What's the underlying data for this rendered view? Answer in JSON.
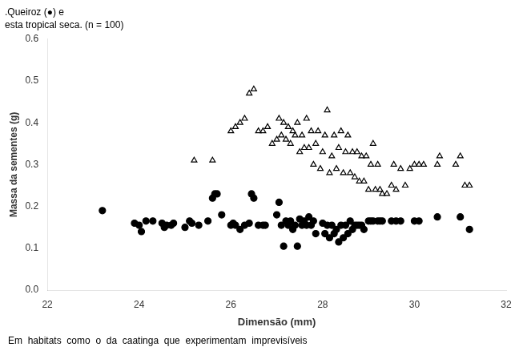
{
  "chart_data": {
    "type": "scatter",
    "title": ".Queiroz (●) e",
    "subtitle": "esta tropical seca. (n = 100)",
    "annotations": [
      "Em  habitats  como  o  da  caatinga  que  experimentam  imprevisíveis"
    ],
    "xlabel": "Dimensão (mm)",
    "ylabel": "Massa da sementes (g)",
    "xlim": [
      22,
      32
    ],
    "ylim": [
      0,
      0.6
    ],
    "xticks": [
      22,
      24,
      26,
      28,
      30,
      32
    ],
    "yticks": [
      {
        "value": 0,
        "label": "0.0"
      },
      0.1,
      0.2,
      0.3,
      0.4,
      0.5,
      0.6
    ],
    "grid": false,
    "series": [
      {
        "color": "#000000",
        "marker": "circle",
        "x": [
          23.2,
          23.9,
          24.0,
          24.05,
          24.15,
          24.3,
          24.5,
          24.55,
          24.6,
          24.7,
          24.75,
          25.0,
          25.1,
          25.15,
          25.3,
          25.5,
          25.6,
          25.65,
          25.7,
          25.8,
          26.0,
          26.05,
          26.1,
          26.2,
          26.3,
          26.4,
          26.45,
          26.5,
          26.6,
          26.7,
          26.75,
          27.0,
          27.05,
          27.1,
          27.15,
          27.2,
          27.25,
          27.3,
          27.35,
          27.4,
          27.45,
          27.5,
          27.55,
          27.6,
          27.65,
          27.7,
          27.75,
          27.8,
          27.85,
          28.0,
          28.05,
          28.1,
          28.15,
          28.2,
          28.25,
          28.3,
          28.35,
          28.4,
          28.45,
          28.5,
          28.55,
          28.6,
          28.65,
          28.7,
          28.75,
          28.8,
          28.85,
          28.9,
          29.0,
          29.05,
          29.1,
          29.2,
          29.25,
          29.3,
          29.5,
          29.6,
          29.7,
          30.0,
          30.1,
          30.5,
          31.0,
          31.2
        ],
        "values": [
          0.19,
          0.16,
          0.155,
          0.14,
          0.165,
          0.165,
          0.16,
          0.15,
          0.155,
          0.155,
          0.16,
          0.15,
          0.165,
          0.16,
          0.155,
          0.165,
          0.22,
          0.23,
          0.23,
          0.18,
          0.155,
          0.16,
          0.155,
          0.145,
          0.155,
          0.16,
          0.23,
          0.22,
          0.155,
          0.155,
          0.155,
          0.18,
          0.21,
          0.155,
          0.105,
          0.165,
          0.155,
          0.165,
          0.145,
          0.155,
          0.105,
          0.17,
          0.155,
          0.165,
          0.155,
          0.175,
          0.155,
          0.165,
          0.135,
          0.16,
          0.135,
          0.155,
          0.125,
          0.155,
          0.135,
          0.145,
          0.115,
          0.155,
          0.125,
          0.155,
          0.135,
          0.165,
          0.145,
          0.155,
          0.155,
          0.155,
          0.155,
          0.145,
          0.165,
          0.165,
          0.165,
          0.165,
          0.165,
          0.165,
          0.165,
          0.165,
          0.165,
          0.165,
          0.165,
          0.175,
          0.175,
          0.145
        ]
      },
      {
        "color": "#000000",
        "marker": "triangle-open",
        "x": [
          25.2,
          25.6,
          26.0,
          26.1,
          26.2,
          26.3,
          26.4,
          26.5,
          26.6,
          26.7,
          26.8,
          26.9,
          27.0,
          27.05,
          27.1,
          27.15,
          27.2,
          27.25,
          27.3,
          27.35,
          27.4,
          27.45,
          27.5,
          27.55,
          27.6,
          27.65,
          27.7,
          27.75,
          27.8,
          27.85,
          27.9,
          27.95,
          28.0,
          28.05,
          28.1,
          28.15,
          28.2,
          28.25,
          28.3,
          28.35,
          28.4,
          28.45,
          28.5,
          28.55,
          28.6,
          28.65,
          28.7,
          28.75,
          28.8,
          28.85,
          28.9,
          28.95,
          29.0,
          29.05,
          29.1,
          29.15,
          29.2,
          29.25,
          29.3,
          29.4,
          29.5,
          29.55,
          29.6,
          29.7,
          29.8,
          29.9,
          30.0,
          30.1,
          30.2,
          30.5,
          30.55,
          30.9,
          31.0,
          31.1,
          31.2
        ],
        "values": [
          0.31,
          0.31,
          0.38,
          0.39,
          0.4,
          0.41,
          0.47,
          0.48,
          0.38,
          0.38,
          0.39,
          0.35,
          0.36,
          0.41,
          0.37,
          0.4,
          0.36,
          0.39,
          0.35,
          0.38,
          0.37,
          0.4,
          0.33,
          0.37,
          0.34,
          0.41,
          0.34,
          0.38,
          0.3,
          0.35,
          0.38,
          0.29,
          0.33,
          0.37,
          0.43,
          0.28,
          0.32,
          0.37,
          0.29,
          0.34,
          0.38,
          0.28,
          0.33,
          0.37,
          0.28,
          0.33,
          0.27,
          0.33,
          0.26,
          0.32,
          0.26,
          0.32,
          0.24,
          0.3,
          0.35,
          0.24,
          0.3,
          0.24,
          0.23,
          0.23,
          0.25,
          0.3,
          0.24,
          0.29,
          0.25,
          0.29,
          0.3,
          0.3,
          0.3,
          0.3,
          0.32,
          0.3,
          0.32,
          0.25,
          0.25
        ]
      }
    ]
  }
}
